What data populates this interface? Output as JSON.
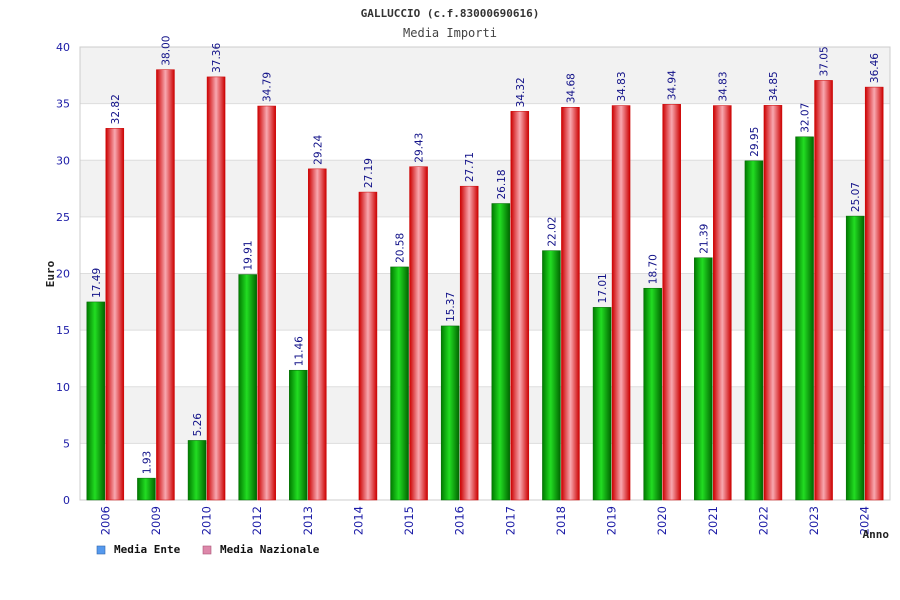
{
  "chart_data": {
    "type": "bar",
    "title": "GALLUCCIO (c.f.83000690616)",
    "subtitle": "Media Importi",
    "xlabel": "Anno",
    "ylabel": "Euro",
    "ylim": [
      0,
      40
    ],
    "yticks": [
      0,
      5,
      10,
      15,
      20,
      25,
      30,
      35,
      40
    ],
    "grid": true,
    "legend_position": "bottom-left",
    "categories": [
      "2006",
      "2009",
      "2010",
      "2012",
      "2013",
      "2014",
      "2015",
      "2016",
      "2017",
      "2018",
      "2019",
      "2020",
      "2021",
      "2022",
      "2023",
      "2024"
    ],
    "series": [
      {
        "name": "Media Ente",
        "color": "#00aa00",
        "legend_color": "#5599ee",
        "values": [
          17.49,
          1.93,
          5.26,
          19.91,
          11.46,
          null,
          20.58,
          15.37,
          26.18,
          22.02,
          17.01,
          18.7,
          21.39,
          29.95,
          32.07,
          25.07
        ],
        "labels": [
          "17.49",
          "1.93",
          "5.26",
          "19.91",
          "11.46",
          "",
          "20.58",
          "15.37",
          "26.18",
          "22.02",
          "17.01",
          "18.70",
          "21.39",
          "29.95",
          "32.07",
          "25.07"
        ]
      },
      {
        "name": "Media Nazionale",
        "color": "#ee1111",
        "legend_color": "#dd88aa",
        "values": [
          32.82,
          38.0,
          37.36,
          34.79,
          29.24,
          27.19,
          29.43,
          27.71,
          34.32,
          34.68,
          34.83,
          34.94,
          34.83,
          34.85,
          37.05,
          36.46
        ],
        "labels": [
          "32.82",
          "38.00",
          "37.36",
          "34.79",
          "29.24",
          "27.19",
          "29.43",
          "27.71",
          "34.32",
          "34.68",
          "34.83",
          "34.94",
          "34.83",
          "34.85",
          "37.05",
          "36.46"
        ]
      }
    ]
  }
}
